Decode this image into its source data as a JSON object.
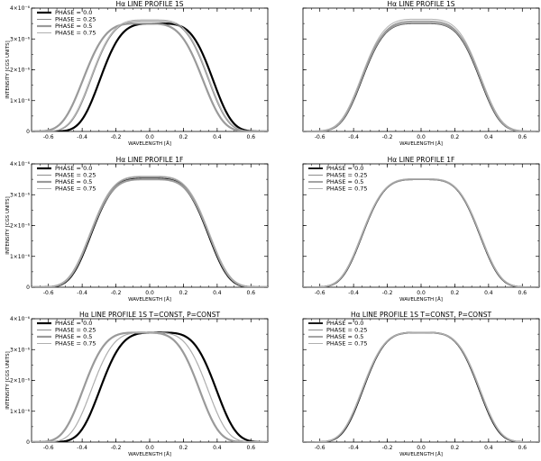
{
  "chart_data": [
    {
      "type": "line",
      "title": "Hα LINE PROFILE 1S",
      "xlabel": "WAVELENGTH [Å]",
      "ylabel": "INTENSITY [CGS UNITS]",
      "xlim": [
        -0.7,
        0.7
      ],
      "ylim": [
        0,
        4e-06
      ],
      "x_ticks": [
        "-0.6",
        "-0.4",
        "-0.2",
        "0.0",
        "0.2",
        "0.4",
        "0.6"
      ],
      "y_ticks": [
        "0",
        "1×10⁻⁶",
        "2×10⁻⁶",
        "3×10⁻⁶",
        "4×10⁻⁶"
      ],
      "legend": "top-left",
      "series": [
        {
          "name": "PHASE = 0.0",
          "center": 0.04,
          "peak": 3.5e-06,
          "halfwidth": 0.33,
          "color": "#000000",
          "width": 2.2
        },
        {
          "name": "PHASE = 0.25",
          "center": 0.0,
          "peak": 3.58e-06,
          "halfwidth": 0.34,
          "color": "#8c8c8c",
          "width": 1.0
        },
        {
          "name": "PHASE = 0.5",
          "center": -0.04,
          "peak": 3.5e-06,
          "halfwidth": 0.35,
          "color": "#9a9a9a",
          "width": 2.2
        },
        {
          "name": "PHASE = 0.75",
          "center": 0.0,
          "peak": 3.62e-06,
          "halfwidth": 0.345,
          "color": "#b0b0b0",
          "width": 1.0
        }
      ]
    },
    {
      "type": "line",
      "title": "Hα LINE PROFILE 1S",
      "xlabel": "WAVELENGTH [Å]",
      "ylabel": "",
      "xlim": [
        -0.7,
        0.7
      ],
      "ylim": [
        0,
        4e-06
      ],
      "x_ticks": [
        "-0.6",
        "-0.4",
        "-0.2",
        "0.0",
        "0.2",
        "0.4",
        "0.6"
      ],
      "y_ticks": [],
      "legend": "none",
      "series": [
        {
          "center": 0.0,
          "peak": 3.5e-06,
          "halfwidth": 0.345,
          "color": "#000000",
          "width": 1.2
        },
        {
          "center": 0.0,
          "peak": 3.58e-06,
          "halfwidth": 0.345,
          "color": "#8c8c8c",
          "width": 1.0
        },
        {
          "center": 0.0,
          "peak": 3.52e-06,
          "halfwidth": 0.35,
          "color": "#9a9a9a",
          "width": 2.2
        },
        {
          "center": 0.0,
          "peak": 3.64e-06,
          "halfwidth": 0.35,
          "color": "#b0b0b0",
          "width": 1.0
        }
      ]
    },
    {
      "type": "line",
      "title": "Hα LINE PROFILE 1F",
      "xlabel": "WAVELENGTH [Å]",
      "ylabel": "INTENSITY [CGS UNITS]",
      "xlim": [
        -0.7,
        0.7
      ],
      "ylim": [
        0,
        4e-06
      ],
      "x_ticks": [
        "-0.6",
        "-0.4",
        "-0.2",
        "0.0",
        "0.2",
        "0.4",
        "0.6"
      ],
      "y_ticks": [
        "0",
        "1×10⁻⁶",
        "2×10⁻⁶",
        "3×10⁻⁶",
        "4×10⁻⁶"
      ],
      "legend": "top-left",
      "series": [
        {
          "name": "PHASE = 0.0",
          "center": 0.0,
          "peak": 3.52e-06,
          "halfwidth": 0.345,
          "color": "#000000",
          "width": 2.2
        },
        {
          "name": "PHASE = 0.25",
          "center": 0.0,
          "peak": 3.58e-06,
          "halfwidth": 0.345,
          "color": "#8c8c8c",
          "width": 1.0
        },
        {
          "name": "PHASE = 0.5",
          "center": 0.0,
          "peak": 3.5e-06,
          "halfwidth": 0.35,
          "color": "#9a9a9a",
          "width": 2.2
        },
        {
          "name": "PHASE = 0.75",
          "center": 0.0,
          "peak": 3.6e-06,
          "halfwidth": 0.35,
          "color": "#b0b0b0",
          "width": 1.0
        }
      ]
    },
    {
      "type": "line",
      "title": "Hα LINE PROFILE 1F",
      "xlabel": "WAVELENGTH [Å]",
      "ylabel": "",
      "xlim": [
        -0.7,
        0.7
      ],
      "ylim": [
        0,
        4e-06
      ],
      "x_ticks": [
        "-0.6",
        "-0.4",
        "-0.2",
        "0.0",
        "0.2",
        "0.4",
        "0.6"
      ],
      "y_ticks": [],
      "legend": "top-left",
      "series": [
        {
          "name": "PHASE = 0.0",
          "center": 0.0,
          "peak": 3.5e-06,
          "halfwidth": 0.345,
          "color": "#000000",
          "width": 1.8
        },
        {
          "name": "PHASE = 0.25",
          "center": 0.0,
          "peak": 3.51e-06,
          "halfwidth": 0.345,
          "color": "#8c8c8c",
          "width": 1.0
        },
        {
          "name": "PHASE = 0.5",
          "center": 0.0,
          "peak": 3.5e-06,
          "halfwidth": 0.347,
          "color": "#9a9a9a",
          "width": 1.8
        },
        {
          "name": "PHASE = 0.75",
          "center": 0.0,
          "peak": 3.52e-06,
          "halfwidth": 0.347,
          "color": "#b0b0b0",
          "width": 1.0
        }
      ]
    },
    {
      "type": "line",
      "title": "Hα LINE PROFILE 1S T=CONST, P=CONST",
      "xlabel": "WAVELENGTH [Å]",
      "ylabel": "INTENSITY [CGS UNITS]",
      "xlim": [
        -0.7,
        0.7
      ],
      "ylim": [
        0,
        4e-06
      ],
      "x_ticks": [
        "-0.6",
        "-0.4",
        "-0.2",
        "0.0",
        "0.2",
        "0.4",
        "0.6"
      ],
      "y_ticks": [
        "0",
        "1×10⁻⁶",
        "2×10⁻⁶",
        "3×10⁻⁶",
        "4×10⁻⁶"
      ],
      "legend": "top-left",
      "series": [
        {
          "name": "PHASE = 0.0",
          "center": 0.05,
          "peak": 3.55e-06,
          "halfwidth": 0.34,
          "color": "#000000",
          "width": 2.2
        },
        {
          "name": "PHASE = 0.25",
          "center": 0.0,
          "peak": 3.55e-06,
          "halfwidth": 0.34,
          "color": "#8c8c8c",
          "width": 1.0
        },
        {
          "name": "PHASE = 0.5",
          "center": -0.05,
          "peak": 3.55e-06,
          "halfwidth": 0.34,
          "color": "#9a9a9a",
          "width": 2.2
        },
        {
          "name": "PHASE = 0.75",
          "center": 0.0,
          "peak": 3.55e-06,
          "halfwidth": 0.34,
          "color": "#b0b0b0",
          "width": 1.0
        }
      ]
    },
    {
      "type": "line",
      "title": "Hα LINE PROFILE 1S T=CONST, P=CONST",
      "xlabel": "WAVELENGTH [Å]",
      "ylabel": "",
      "xlim": [
        -0.7,
        0.7
      ],
      "ylim": [
        0,
        4e-06
      ],
      "x_ticks": [
        "-0.6",
        "-0.4",
        "-0.2",
        "0.0",
        "0.2",
        "0.4",
        "0.6"
      ],
      "y_ticks": [],
      "legend": "top-left",
      "series": [
        {
          "name": "PHASE = 0.0",
          "center": 0.0,
          "peak": 3.55e-06,
          "halfwidth": 0.34,
          "color": "#000000",
          "width": 1.8
        },
        {
          "name": "PHASE = 0.25",
          "center": 0.0,
          "peak": 3.55e-06,
          "halfwidth": 0.342,
          "color": "#8c8c8c",
          "width": 1.0
        },
        {
          "name": "PHASE = 0.5",
          "center": 0.0,
          "peak": 3.55e-06,
          "halfwidth": 0.343,
          "color": "#9a9a9a",
          "width": 1.8
        },
        {
          "name": "PHASE = 0.75",
          "center": 0.0,
          "peak": 3.55e-06,
          "halfwidth": 0.345,
          "color": "#b0b0b0",
          "width": 1.0
        }
      ]
    }
  ]
}
